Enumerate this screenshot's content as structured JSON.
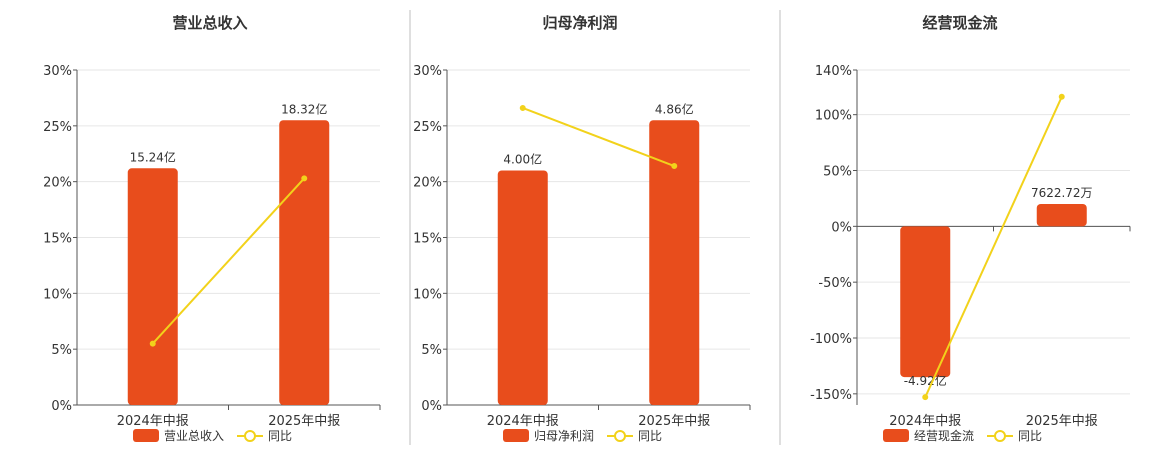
{
  "colors": {
    "bar": "#E84D1C",
    "line": "#F2D21B"
  },
  "chart_data": [
    {
      "type": "bar",
      "title": "营业总收入",
      "categories": [
        "2024年中报",
        "2025年中报"
      ],
      "ylim": [
        0,
        30
      ],
      "ticks": [
        "0%",
        "5%",
        "10%",
        "15%",
        "20%",
        "25%",
        "30%"
      ],
      "tick_values": [
        0,
        5,
        10,
        15,
        20,
        25,
        30
      ],
      "bar_label": "营业总收入",
      "line_label": "同比",
      "series": [
        {
          "name": "营业总收入",
          "kind": "bar",
          "values": [
            21.2,
            25.5
          ],
          "labels": [
            "15.24亿",
            "18.32亿"
          ]
        },
        {
          "name": "同比",
          "kind": "line",
          "values": [
            5.5,
            20.3
          ]
        }
      ]
    },
    {
      "type": "bar",
      "title": "归母净利润",
      "categories": [
        "2024年中报",
        "2025年中报"
      ],
      "ylim": [
        0,
        30
      ],
      "ticks": [
        "0%",
        "5%",
        "10%",
        "15%",
        "20%",
        "25%",
        "30%"
      ],
      "tick_values": [
        0,
        5,
        10,
        15,
        20,
        25,
        30
      ],
      "bar_label": "归母净利润",
      "line_label": "同比",
      "series": [
        {
          "name": "归母净利润",
          "kind": "bar",
          "values": [
            21.0,
            25.5
          ],
          "labels": [
            "4.00亿",
            "4.86亿"
          ]
        },
        {
          "name": "同比",
          "kind": "line",
          "values": [
            26.6,
            21.4
          ]
        }
      ]
    },
    {
      "type": "bar",
      "title": "经营现金流",
      "categories": [
        "2024年中报",
        "2025年中报"
      ],
      "ylim": [
        -160,
        140
      ],
      "ticks": [
        "-150%",
        "-100%",
        "-50%",
        "0%",
        "50%",
        "100%",
        "140%"
      ],
      "tick_values": [
        -150,
        -100,
        -50,
        0,
        50,
        100,
        140
      ],
      "bar_label": "经营现金流",
      "line_label": "同比",
      "series": [
        {
          "name": "经营现金流",
          "kind": "bar",
          "values": [
            -135,
            20
          ],
          "labels": [
            "-4.92亿",
            "7622.72万"
          ]
        },
        {
          "name": "同比",
          "kind": "line",
          "values": [
            -153,
            116
          ]
        }
      ]
    }
  ]
}
